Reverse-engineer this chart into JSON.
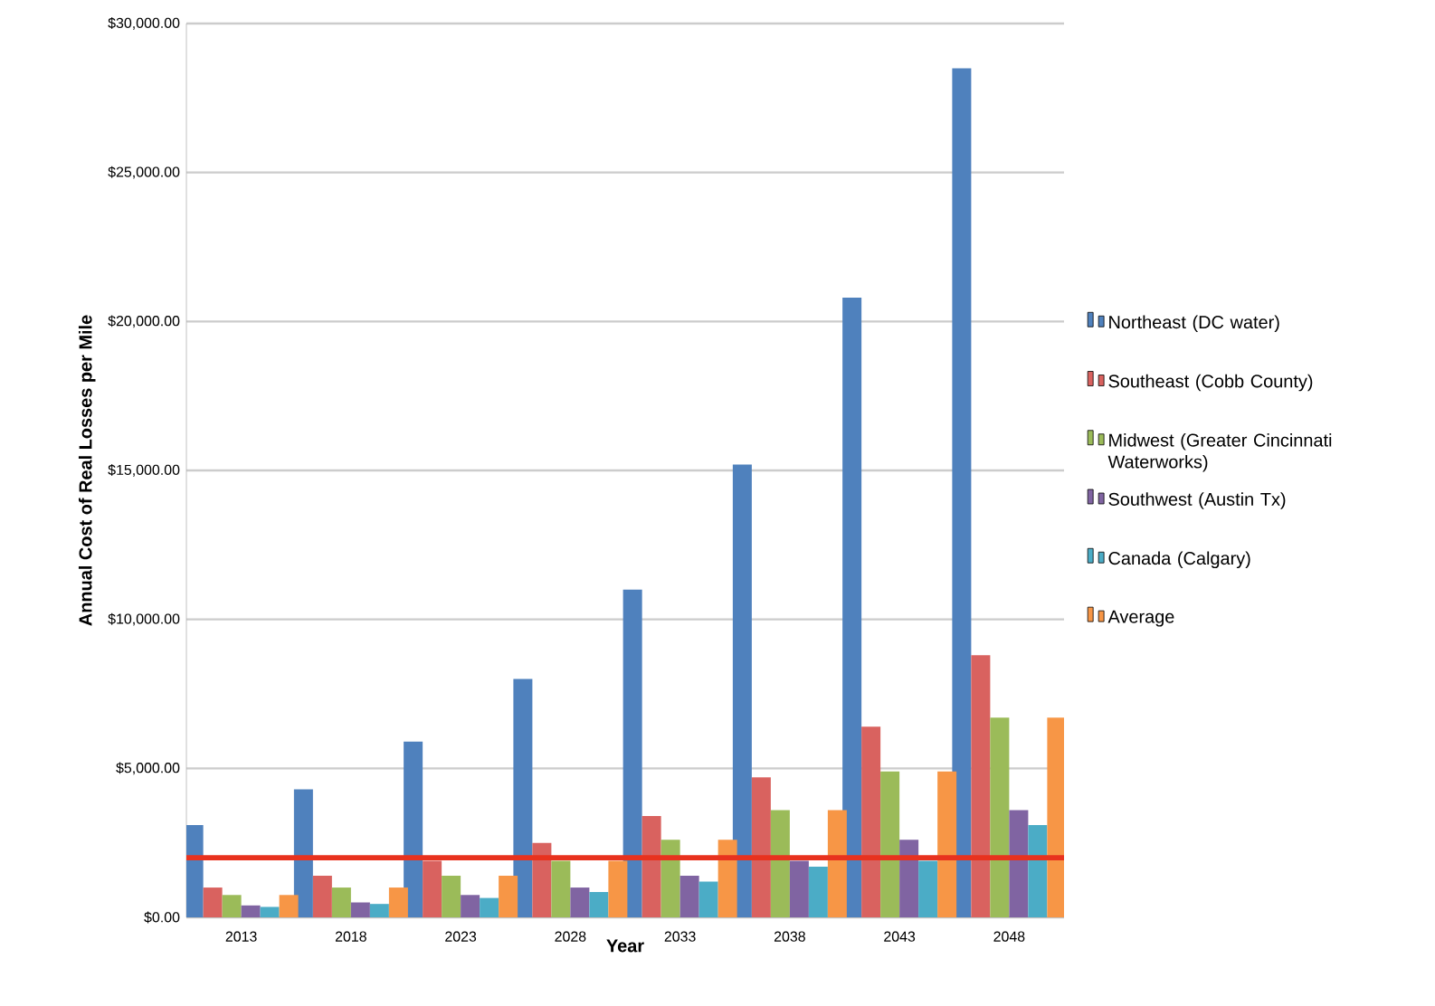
{
  "chart_data": {
    "type": "bar",
    "xlabel": "Year",
    "ylabel": "Annual Cost of Real Losses per Mile",
    "categories": [
      "2013",
      "2018",
      "2023",
      "2028",
      "2033",
      "2038",
      "2043",
      "2048"
    ],
    "series": [
      {
        "name": "Northeast (DC water)",
        "color": "#4f81bd",
        "values": [
          3100,
          4300,
          5900,
          8000,
          11000,
          15200,
          20800,
          28500
        ]
      },
      {
        "name": "Southeast (Cobb County)",
        "color": "#d9625f",
        "values": [
          1000,
          1400,
          1900,
          2500,
          3400,
          4700,
          6400,
          8800
        ]
      },
      {
        "name": "Midwest (Greater Cincinnati Waterworks)",
        "color": "#9bbb59",
        "values": [
          750,
          1000,
          1400,
          1900,
          2600,
          3600,
          4900,
          6700
        ]
      },
      {
        "name": "Southwest (Austin Tx)",
        "color": "#8064a2",
        "values": [
          400,
          500,
          750,
          1000,
          1400,
          1900,
          2600,
          3600
        ]
      },
      {
        "name": "Canada (Calgary)",
        "color": "#4bacc6",
        "values": [
          350,
          450,
          650,
          850,
          1200,
          1700,
          1900,
          3100
        ]
      },
      {
        "name": "Average",
        "color": "#f79646",
        "values": [
          750,
          1000,
          1400,
          1900,
          2600,
          3600,
          4900,
          6700
        ]
      }
    ],
    "ylim": [
      0,
      30000
    ],
    "yticks": [
      {
        "value": 0,
        "label": "$0.00"
      },
      {
        "value": 5000,
        "label": "$5,000.00"
      },
      {
        "value": 10000,
        "label": "$10,000.00"
      },
      {
        "value": 15000,
        "label": "$15,000.00"
      },
      {
        "value": 20000,
        "label": "$20,000.00"
      },
      {
        "value": 25000,
        "label": "$25,000.00"
      },
      {
        "value": 30000,
        "label": "$30,000.00"
      }
    ],
    "grid": "y",
    "legend": "right",
    "ref_lines": [
      {
        "axis": "y",
        "value": 2000,
        "color": "#e8321e"
      }
    ]
  }
}
